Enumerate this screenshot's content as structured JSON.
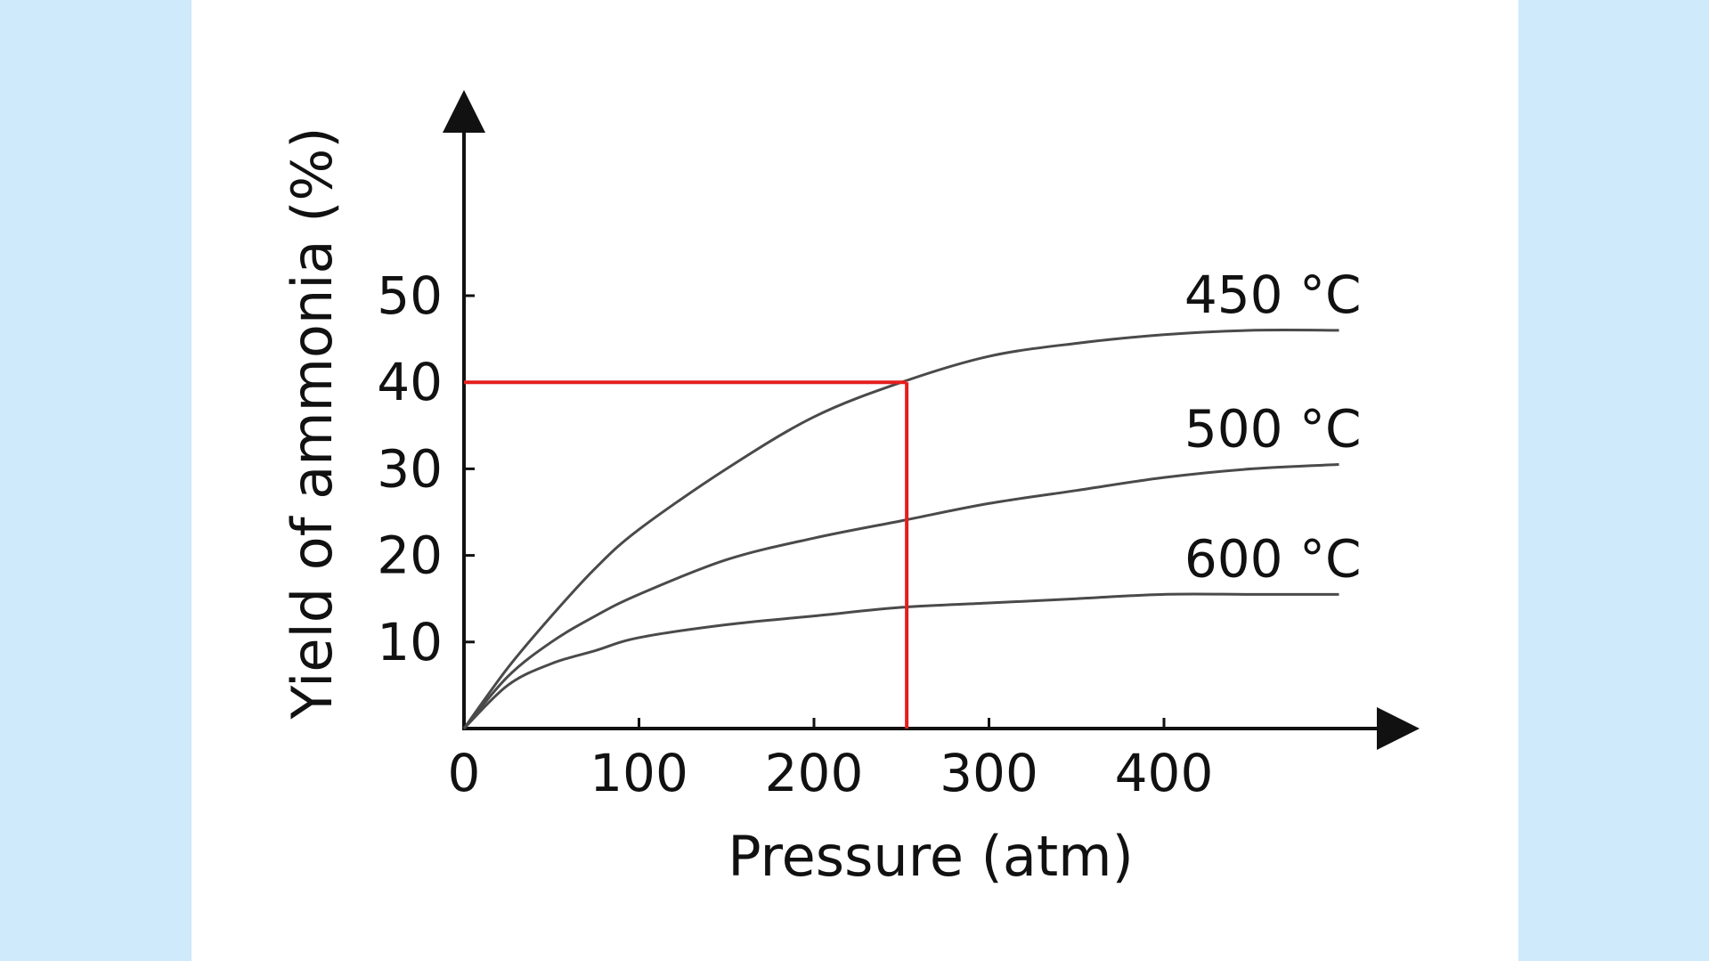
{
  "chart_data": {
    "type": "line",
    "title": "",
    "xlabel": "Pressure (atm)",
    "ylabel": "Yield of ammonia (%)",
    "xlim": [
      0,
      500
    ],
    "ylim": [
      0,
      60
    ],
    "xticks": [
      0,
      100,
      200,
      300,
      400
    ],
    "xtick_labels": [
      "0",
      "100",
      "200",
      "300",
      "400"
    ],
    "yticks": [
      10,
      20,
      30,
      40,
      50
    ],
    "ytick_labels": [
      "10",
      "20",
      "30",
      "40",
      "50"
    ],
    "grid": false,
    "series": [
      {
        "name": "450 °C",
        "color": "#4a4a4a",
        "x": [
          0,
          25,
          50,
          75,
          100,
          150,
          200,
          250,
          300,
          350,
          400,
          450,
          500
        ],
        "y": [
          0,
          7,
          13,
          18.5,
          23,
          30,
          36,
          40,
          43,
          44.5,
          45.5,
          46,
          46
        ]
      },
      {
        "name": "500 °C",
        "color": "#4a4a4a",
        "x": [
          0,
          25,
          50,
          75,
          100,
          150,
          200,
          250,
          300,
          350,
          400,
          450,
          500
        ],
        "y": [
          0,
          6,
          10,
          13,
          15.5,
          19.5,
          22,
          24,
          26,
          27.5,
          29,
          30,
          30.5
        ]
      },
      {
        "name": "600 °C",
        "color": "#4a4a4a",
        "x": [
          0,
          25,
          50,
          75,
          100,
          150,
          200,
          250,
          300,
          350,
          400,
          450,
          500
        ],
        "y": [
          0,
          5,
          7.5,
          9,
          10.5,
          12,
          13,
          14,
          14.5,
          15,
          15.5,
          15.5,
          15.5
        ]
      }
    ],
    "reference_point": {
      "x": 253,
      "y": 40,
      "color": "#e41e1e"
    }
  }
}
